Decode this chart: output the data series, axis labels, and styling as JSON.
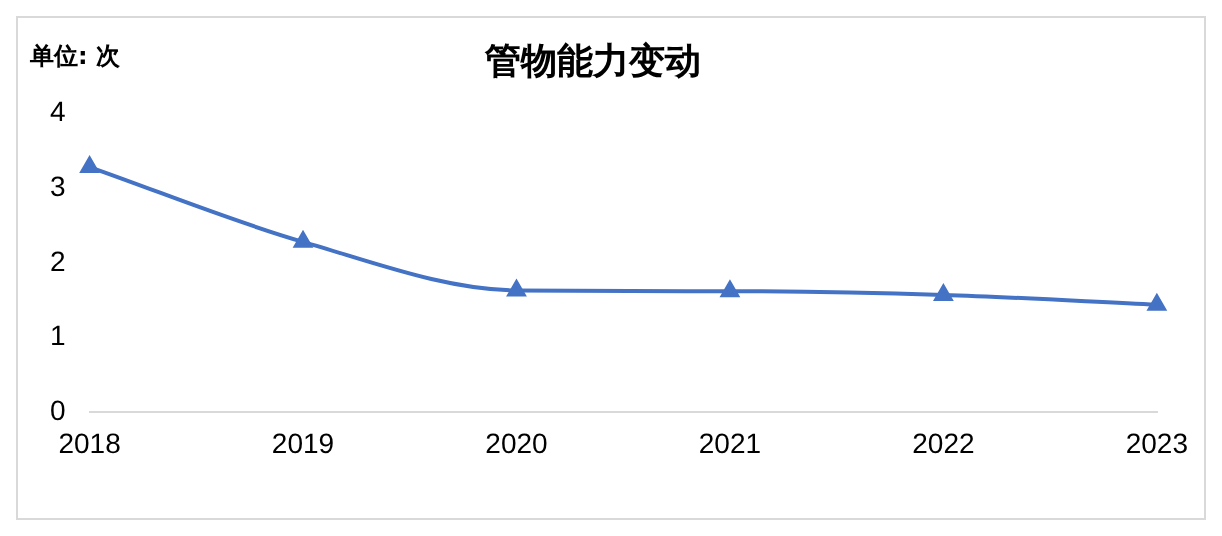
{
  "chart_data": {
    "type": "line",
    "title": "管物能力变动",
    "ylabel": "单位: 次",
    "categories": [
      "2018",
      "2019",
      "2020",
      "2021",
      "2022",
      "2023"
    ],
    "series": [
      {
        "color": "#4472c4",
        "values": [
          3.28,
          2.28,
          1.63,
          1.62,
          1.57,
          1.44
        ]
      }
    ],
    "ylim": [
      0,
      4
    ],
    "yticks": [
      0,
      1,
      2,
      3,
      4
    ],
    "grid": false,
    "legend": false,
    "marker": "triangle",
    "line_style": "solid"
  }
}
